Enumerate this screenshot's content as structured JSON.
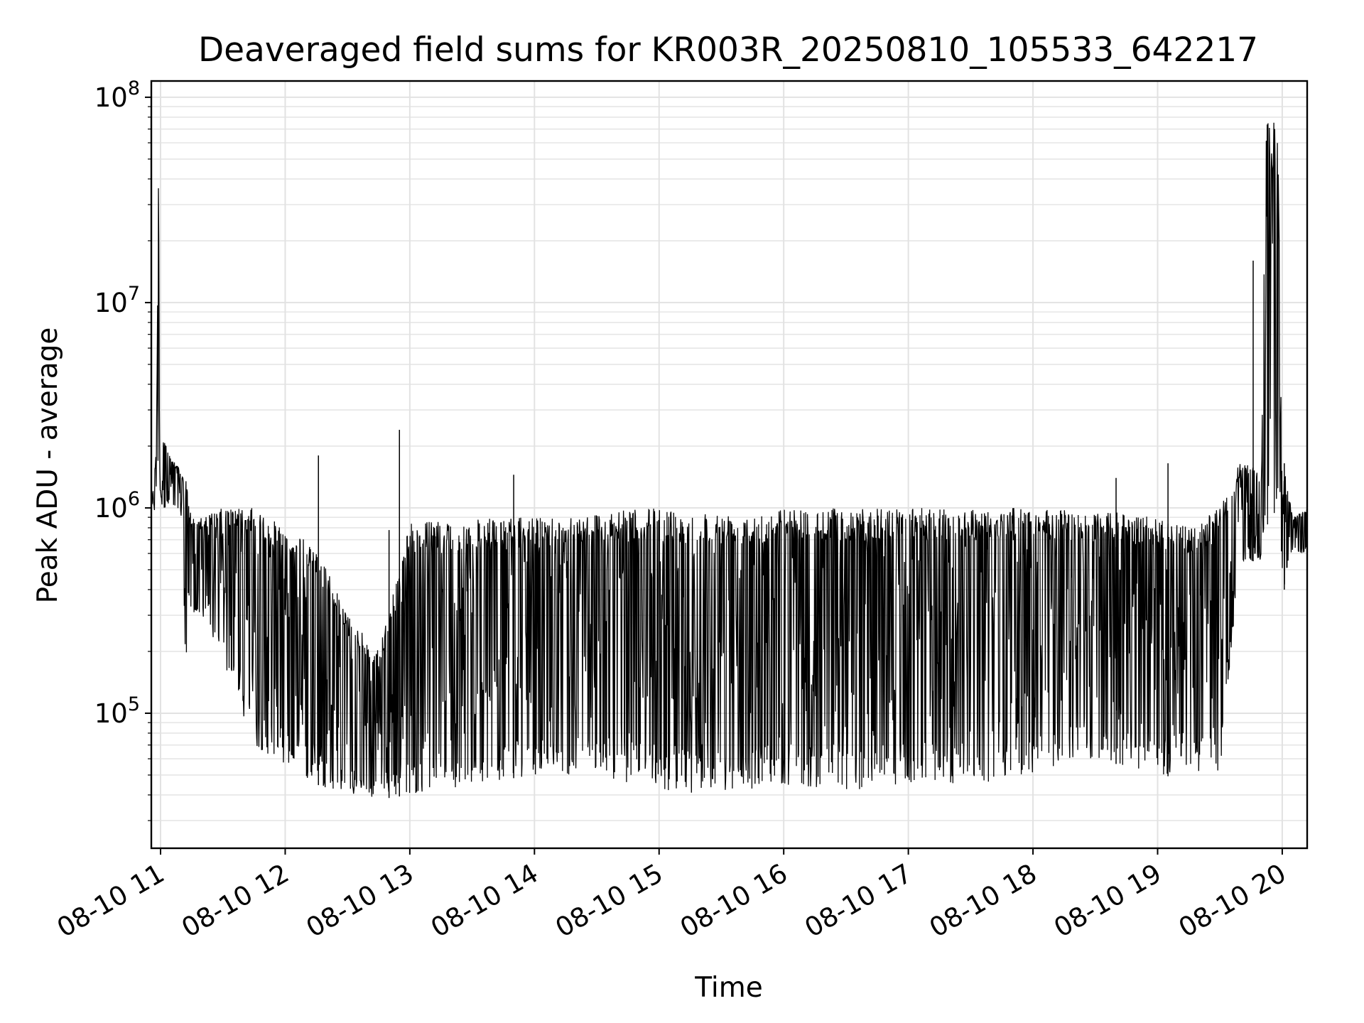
{
  "chart_data": {
    "type": "line",
    "title": "Deaveraged field sums for KR003R_20250810_105533_642217",
    "xlabel": "Time",
    "ylabel": "Peak ADU - average",
    "yscale": "log",
    "ylim": [
      22000,
      120000000
    ],
    "xlim": [
      "2025-08-10T10:55:33",
      "2025-08-10T20:12:00"
    ],
    "grid": true,
    "x_ticks": [
      "08-10 11",
      "08-10 12",
      "08-10 13",
      "08-10 14",
      "08-10 15",
      "08-10 16",
      "08-10 17",
      "08-10 18",
      "08-10 19",
      "08-10 20"
    ],
    "x_tick_times": [
      "2025-08-10T11:00",
      "2025-08-10T12:00",
      "2025-08-10T13:00",
      "2025-08-10T14:00",
      "2025-08-10T15:00",
      "2025-08-10T16:00",
      "2025-08-10T17:00",
      "2025-08-10T18:00",
      "2025-08-10T19:00",
      "2025-08-10T20:00"
    ],
    "y_ticks": [
      {
        "value": 100000,
        "base": "10",
        "exp": "5"
      },
      {
        "value": 1000000,
        "base": "10",
        "exp": "6"
      },
      {
        "value": 10000000,
        "base": "10",
        "exp": "7"
      },
      {
        "value": 100000000,
        "base": "10",
        "exp": "8"
      }
    ],
    "series": [
      {
        "color": "#000000",
        "x": [
          "2025-08-10T10:55:33",
          "2025-08-10T10:58",
          "2025-08-10T10:59",
          "2025-08-10T11:00",
          "2025-08-10T11:01",
          "2025-08-10T11:05",
          "2025-08-10T11:10",
          "2025-08-10T11:12",
          "2025-08-10T11:15",
          "2025-08-10T11:20",
          "2025-08-10T11:30",
          "2025-08-10T11:45",
          "2025-08-10T12:00",
          "2025-08-10T12:15",
          "2025-08-10T12:30",
          "2025-08-10T12:45",
          "2025-08-10T13:00",
          "2025-08-10T13:30",
          "2025-08-10T14:00",
          "2025-08-10T14:30",
          "2025-08-10T15:00",
          "2025-08-10T15:30",
          "2025-08-10T16:00",
          "2025-08-10T16:30",
          "2025-08-10T17:00",
          "2025-08-10T17:30",
          "2025-08-10T18:00",
          "2025-08-10T18:30",
          "2025-08-10T18:45",
          "2025-08-10T19:00",
          "2025-08-10T19:15",
          "2025-08-10T19:30",
          "2025-08-10T19:40",
          "2025-08-10T19:50",
          "2025-08-10T19:52",
          "2025-08-10T19:55",
          "2025-08-10T19:58",
          "2025-08-10T20:00",
          "2025-08-10T20:01",
          "2025-08-10T20:05",
          "2025-08-10T20:12"
        ],
        "upper": [
          1000000,
          2000000,
          45000000,
          1500000,
          2200000,
          1800000,
          1500000,
          1400000,
          900000,
          900000,
          1000000,
          1000000,
          800000,
          650000,
          300000,
          200000,
          850000,
          880000,
          900000,
          950000,
          1000000,
          950000,
          1000000,
          1000000,
          1000000,
          1000000,
          1000000,
          950000,
          950000,
          900000,
          800000,
          1000000,
          1700000,
          1500000,
          75000000,
          78000000,
          70000000,
          1000000,
          1600000,
          900000,
          1000000
        ],
        "lower": [
          900000,
          1000000,
          1000000,
          1100000,
          1000000,
          1000000,
          900000,
          160000,
          300000,
          300000,
          180000,
          70000,
          55000,
          45000,
          40000,
          38000,
          40000,
          45000,
          50000,
          50000,
          42000,
          40000,
          45000,
          42000,
          45000,
          45000,
          50000,
          60000,
          55000,
          50000,
          48000,
          50000,
          550000,
          550000,
          600000,
          650000,
          650000,
          500000,
          400000,
          600000,
          600000
        ],
        "spikes": [
          {
            "x": "2025-08-10T12:16",
            "y": 1800000
          },
          {
            "x": "2025-08-10T12:50",
            "y": 780000
          },
          {
            "x": "2025-08-10T12:55",
            "y": 2400000
          },
          {
            "x": "2025-08-10T13:50",
            "y": 1450000
          },
          {
            "x": "2025-08-10T18:40",
            "y": 1400000
          },
          {
            "x": "2025-08-10T19:05",
            "y": 1650000
          },
          {
            "x": "2025-08-10T19:46",
            "y": 16000000
          },
          {
            "x": "2025-08-10T20:01",
            "y": 1650000
          }
        ]
      }
    ]
  }
}
